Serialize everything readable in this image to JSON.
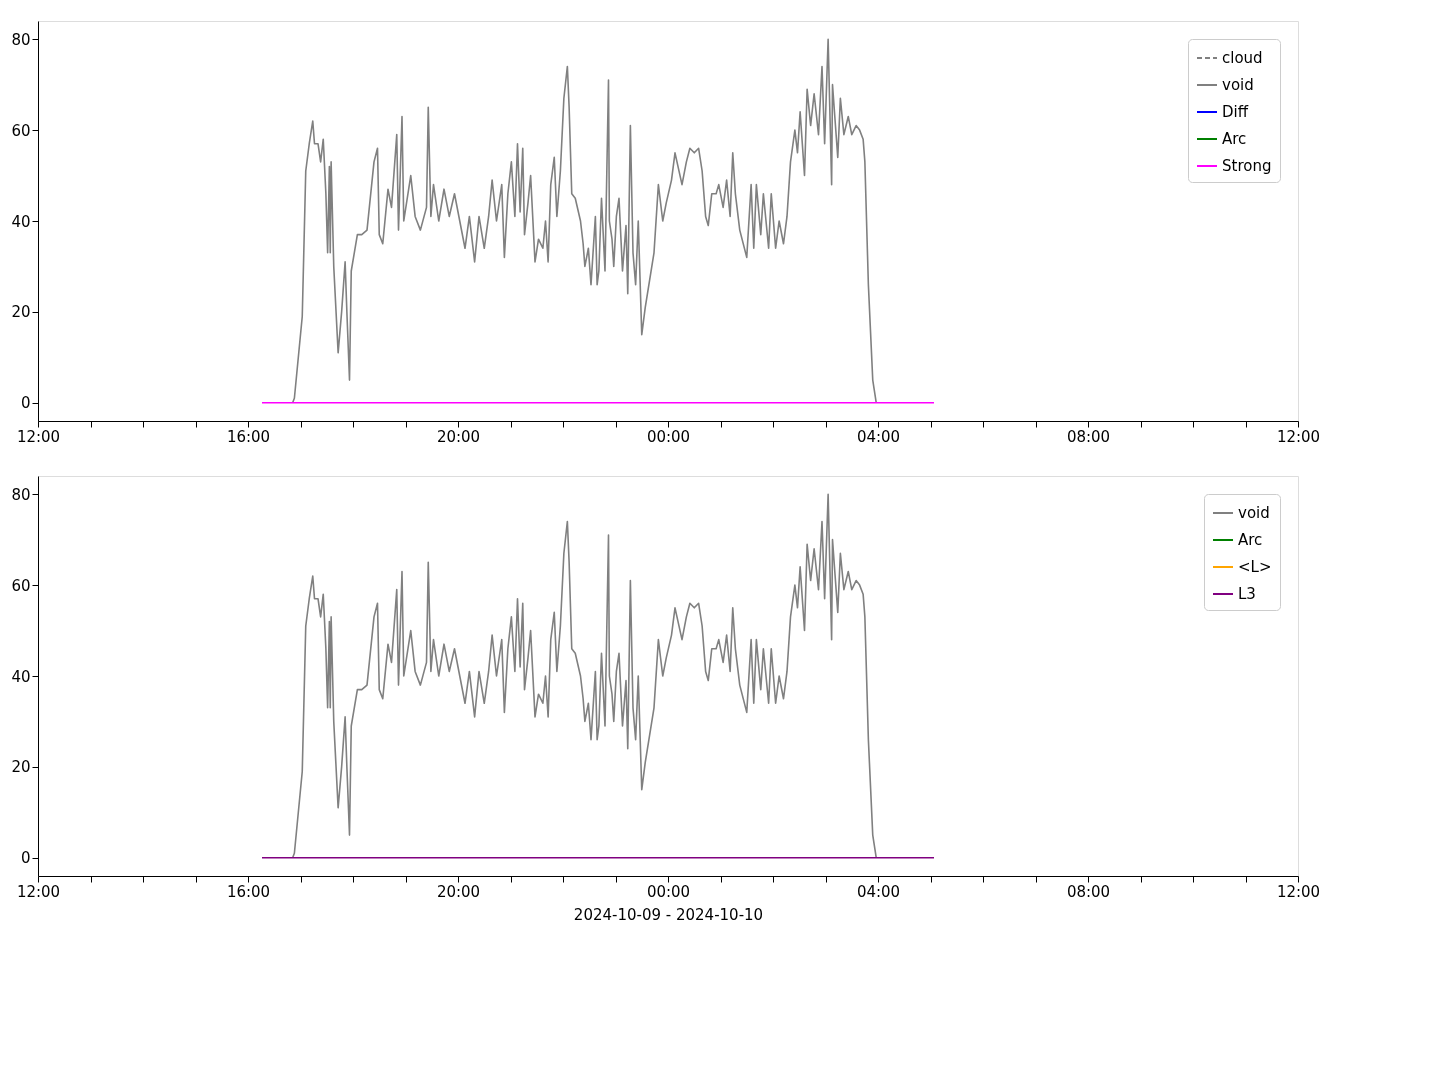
{
  "chart_data": [
    {
      "type": "line",
      "xlim": [
        "2024-10-09T12:00",
        "2024-10-10T12:00"
      ],
      "ylim": [
        -4,
        84
      ],
      "xticks": [
        {
          "value": "2024-10-09T12:00",
          "label": "12:00"
        },
        {
          "value": "2024-10-09T13:00",
          "label": null
        },
        {
          "value": "2024-10-09T14:00",
          "label": null
        },
        {
          "value": "2024-10-09T15:00",
          "label": null
        },
        {
          "value": "2024-10-09T16:00",
          "label": "16:00"
        },
        {
          "value": "2024-10-09T17:00",
          "label": null
        },
        {
          "value": "2024-10-09T18:00",
          "label": null
        },
        {
          "value": "2024-10-09T19:00",
          "label": null
        },
        {
          "value": "2024-10-09T20:00",
          "label": "20:00"
        },
        {
          "value": "2024-10-09T21:00",
          "label": null
        },
        {
          "value": "2024-10-09T22:00",
          "label": null
        },
        {
          "value": "2024-10-09T23:00",
          "label": null
        },
        {
          "value": "2024-10-10T00:00",
          "label": "00:00"
        },
        {
          "value": "2024-10-10T01:00",
          "label": null
        },
        {
          "value": "2024-10-10T02:00",
          "label": null
        },
        {
          "value": "2024-10-10T03:00",
          "label": null
        },
        {
          "value": "2024-10-10T04:00",
          "label": "04:00"
        },
        {
          "value": "2024-10-10T05:00",
          "label": null
        },
        {
          "value": "2024-10-10T06:00",
          "label": null
        },
        {
          "value": "2024-10-10T07:00",
          "label": null
        },
        {
          "value": "2024-10-10T08:00",
          "label": "08:00"
        },
        {
          "value": "2024-10-10T09:00",
          "label": null
        },
        {
          "value": "2024-10-10T10:00",
          "label": null
        },
        {
          "value": "2024-10-10T11:00",
          "label": null
        },
        {
          "value": "2024-10-10T12:00",
          "label": "12:00"
        }
      ],
      "yticks": [
        0,
        20,
        40,
        60,
        80
      ],
      "grid": false,
      "legend": "top right",
      "series": [
        {
          "name": "cloud",
          "color": "#808080",
          "line_style": "dashed"
        },
        {
          "name": "void",
          "color": "#808080",
          "line_style": "solid",
          "x": [
            "2024-10-09T16:51",
            "2024-10-09T16:53",
            "2024-10-09T17:02",
            "2024-10-09T17:06",
            "2024-10-09T17:10",
            "2024-10-09T17:14",
            "2024-10-09T17:16",
            "2024-10-09T17:20",
            "2024-10-09T17:23",
            "2024-10-09T17:26",
            "2024-10-09T17:29",
            "2024-10-09T17:31",
            "2024-10-09T17:33",
            "2024-10-09T17:34",
            "2024-10-09T17:35",
            "2024-10-09T17:38",
            "2024-10-09T17:43",
            "2024-10-09T17:47",
            "2024-10-09T17:51",
            "2024-10-09T17:53",
            "2024-10-09T17:56",
            "2024-10-09T17:58",
            "2024-10-09T18:05",
            "2024-10-09T18:10",
            "2024-10-09T18:16",
            "2024-10-09T18:24",
            "2024-10-09T18:28",
            "2024-10-09T18:30",
            "2024-10-09T18:34",
            "2024-10-09T18:40",
            "2024-10-09T18:44",
            "2024-10-09T18:50",
            "2024-10-09T18:52",
            "2024-10-09T18:56",
            "2024-10-09T18:58",
            "2024-10-09T19:06",
            "2024-10-09T19:11",
            "2024-10-09T19:17",
            "2024-10-09T19:24",
            "2024-10-09T19:26",
            "2024-10-09T19:29",
            "2024-10-09T19:32",
            "2024-10-09T19:38",
            "2024-10-09T19:44",
            "2024-10-09T19:50",
            "2024-10-09T19:56",
            "2024-10-09T20:02",
            "2024-10-09T20:08",
            "2024-10-09T20:13",
            "2024-10-09T20:19",
            "2024-10-09T20:24",
            "2024-10-09T20:30",
            "2024-10-09T20:35",
            "2024-10-09T20:39",
            "2024-10-09T20:44",
            "2024-10-09T20:50",
            "2024-10-09T20:53",
            "2024-10-09T20:57",
            "2024-10-09T21:01",
            "2024-10-09T21:05",
            "2024-10-09T21:08",
            "2024-10-09T21:11",
            "2024-10-09T21:14",
            "2024-10-09T21:16",
            "2024-10-09T21:20",
            "2024-10-09T21:23",
            "2024-10-09T21:28",
            "2024-10-09T21:32",
            "2024-10-09T21:37",
            "2024-10-09T21:40",
            "2024-10-09T21:43",
            "2024-10-09T21:46",
            "2024-10-09T21:50",
            "2024-10-09T21:53",
            "2024-10-09T21:57",
            "2024-10-09T22:01",
            "2024-10-09T22:05",
            "2024-10-09T22:07",
            "2024-10-09T22:10",
            "2024-10-09T22:14",
            "2024-10-09T22:20",
            "2024-10-09T22:23",
            "2024-10-09T22:25",
            "2024-10-09T22:29",
            "2024-10-09T22:32",
            "2024-10-09T22:37",
            "2024-10-09T22:39",
            "2024-10-09T22:41",
            "2024-10-09T22:44",
            "2024-10-09T22:48",
            "2024-10-09T22:52",
            "2024-10-09T22:53",
            "2024-10-09T22:56",
            "2024-10-09T22:58",
            "2024-10-09T23:01",
            "2024-10-09T23:04",
            "2024-10-09T23:08",
            "2024-10-09T23:12",
            "2024-10-09T23:14",
            "2024-10-09T23:17",
            "2024-10-09T23:20",
            "2024-10-09T23:23",
            "2024-10-09T23:26",
            "2024-10-09T23:30",
            "2024-10-09T23:34",
            "2024-10-09T23:39",
            "2024-10-09T23:44",
            "2024-10-09T23:49",
            "2024-10-09T23:54",
            "2024-10-09T23:58",
            "2024-10-10T00:04",
            "2024-10-10T00:08",
            "2024-10-10T00:16",
            "2024-10-10T00:21",
            "2024-10-10T00:25",
            "2024-10-10T00:30",
            "2024-10-10T00:35",
            "2024-10-10T00:39",
            "2024-10-10T00:43",
            "2024-10-10T00:46",
            "2024-10-10T00:50",
            "2024-10-10T00:55",
            "2024-10-10T00:58",
            "2024-10-10T01:03",
            "2024-10-10T01:07",
            "2024-10-10T01:11",
            "2024-10-10T01:14",
            "2024-10-10T01:17",
            "2024-10-10T01:22",
            "2024-10-10T01:30",
            "2024-10-10T01:35",
            "2024-10-10T01:38",
            "2024-10-10T01:41",
            "2024-10-10T01:46",
            "2024-10-10T01:49",
            "2024-10-10T01:55",
            "2024-10-10T01:58",
            "2024-10-10T02:03",
            "2024-10-10T02:07",
            "2024-10-10T02:12",
            "2024-10-10T02:16",
            "2024-10-10T02:20",
            "2024-10-10T02:25",
            "2024-10-10T02:28",
            "2024-10-10T02:31",
            "2024-10-10T02:36",
            "2024-10-10T02:39",
            "2024-10-10T02:43",
            "2024-10-10T02:47",
            "2024-10-10T02:52",
            "2024-10-10T02:56",
            "2024-10-10T02:59",
            "2024-10-10T03:03",
            "2024-10-10T03:07",
            "2024-10-10T03:08",
            "2024-10-10T03:11",
            "2024-10-10T03:14",
            "2024-10-10T03:17",
            "2024-10-10T03:21",
            "2024-10-10T03:26",
            "2024-10-10T03:30",
            "2024-10-10T03:35",
            "2024-10-10T03:39",
            "2024-10-10T03:43",
            "2024-10-10T03:45",
            "2024-10-10T03:49",
            "2024-10-10T03:54",
            "2024-10-10T03:58"
          ],
          "values": [
            0,
            1,
            19,
            51,
            57,
            62,
            57,
            57,
            53,
            58,
            46,
            33,
            52,
            33,
            53,
            30,
            11,
            20,
            31,
            20,
            5,
            29,
            37,
            37,
            38,
            53,
            56,
            37,
            35,
            47,
            43,
            59,
            38,
            63,
            40,
            50,
            41,
            38,
            43,
            65,
            41,
            48,
            40,
            47,
            41,
            46,
            40,
            34,
            41,
            31,
            41,
            34,
            41,
            49,
            40,
            48,
            32,
            46,
            53,
            41,
            57,
            42,
            56,
            37,
            44,
            50,
            31,
            36,
            34,
            40,
            31,
            48,
            54,
            41,
            51,
            67,
            74,
            65,
            46,
            45,
            40,
            35,
            30,
            34,
            26,
            41,
            26,
            29,
            45,
            29,
            71,
            40,
            36,
            30,
            41,
            45,
            29,
            39,
            24,
            61,
            33,
            26,
            40,
            15,
            21,
            27,
            33,
            48,
            40,
            44,
            49,
            55,
            48,
            53,
            56,
            55,
            56,
            51,
            41,
            39,
            46,
            46,
            48,
            43,
            49,
            41,
            55,
            46,
            38,
            32,
            48,
            34,
            48,
            37,
            46,
            34,
            46,
            34,
            40,
            35,
            41,
            53,
            60,
            55,
            64,
            50,
            69,
            61,
            68,
            59,
            74,
            57,
            80,
            48,
            70,
            62,
            54,
            67,
            59,
            63,
            59,
            61,
            60,
            58,
            53,
            26,
            5,
            0
          ]
        },
        {
          "name": "Diff",
          "color": "#0000ff",
          "line_style": "solid"
        },
        {
          "name": "Arc",
          "color": "#008000",
          "line_style": "solid"
        },
        {
          "name": "Strong",
          "color": "#ff00ff",
          "line_style": "solid",
          "x": [
            "2024-10-09T16:16",
            "2024-10-10T05:04"
          ],
          "values": [
            0,
            0
          ]
        }
      ]
    },
    {
      "type": "line",
      "xlim": [
        "2024-10-09T12:00",
        "2024-10-10T12:00"
      ],
      "ylim": [
        -4,
        84
      ],
      "xlabel": "2024-10-09 - 2024-10-10",
      "xticks": [
        {
          "value": "2024-10-09T12:00",
          "label": "12:00"
        },
        {
          "value": "2024-10-09T13:00",
          "label": null
        },
        {
          "value": "2024-10-09T14:00",
          "label": null
        },
        {
          "value": "2024-10-09T15:00",
          "label": null
        },
        {
          "value": "2024-10-09T16:00",
          "label": "16:00"
        },
        {
          "value": "2024-10-09T17:00",
          "label": null
        },
        {
          "value": "2024-10-09T18:00",
          "label": null
        },
        {
          "value": "2024-10-09T19:00",
          "label": null
        },
        {
          "value": "2024-10-09T20:00",
          "label": "20:00"
        },
        {
          "value": "2024-10-09T21:00",
          "label": null
        },
        {
          "value": "2024-10-09T22:00",
          "label": null
        },
        {
          "value": "2024-10-09T23:00",
          "label": null
        },
        {
          "value": "2024-10-10T00:00",
          "label": "00:00"
        },
        {
          "value": "2024-10-10T01:00",
          "label": null
        },
        {
          "value": "2024-10-10T02:00",
          "label": null
        },
        {
          "value": "2024-10-10T03:00",
          "label": null
        },
        {
          "value": "2024-10-10T04:00",
          "label": "04:00"
        },
        {
          "value": "2024-10-10T05:00",
          "label": null
        },
        {
          "value": "2024-10-10T06:00",
          "label": null
        },
        {
          "value": "2024-10-10T07:00",
          "label": null
        },
        {
          "value": "2024-10-10T08:00",
          "label": "08:00"
        },
        {
          "value": "2024-10-10T09:00",
          "label": null
        },
        {
          "value": "2024-10-10T10:00",
          "label": null
        },
        {
          "value": "2024-10-10T11:00",
          "label": null
        },
        {
          "value": "2024-10-10T12:00",
          "label": "12:00"
        }
      ],
      "yticks": [
        0,
        20,
        40,
        60,
        80
      ],
      "grid": false,
      "legend": "top right",
      "series": [
        {
          "name": "void",
          "color": "#808080",
          "line_style": "solid",
          "x": [
            "2024-10-09T16:51",
            "2024-10-09T16:53",
            "2024-10-09T17:02",
            "2024-10-09T17:06",
            "2024-10-09T17:10",
            "2024-10-09T17:14",
            "2024-10-09T17:16",
            "2024-10-09T17:20",
            "2024-10-09T17:23",
            "2024-10-09T17:26",
            "2024-10-09T17:29",
            "2024-10-09T17:31",
            "2024-10-09T17:33",
            "2024-10-09T17:34",
            "2024-10-09T17:35",
            "2024-10-09T17:38",
            "2024-10-09T17:43",
            "2024-10-09T17:47",
            "2024-10-09T17:51",
            "2024-10-09T17:53",
            "2024-10-09T17:56",
            "2024-10-09T17:58",
            "2024-10-09T18:05",
            "2024-10-09T18:10",
            "2024-10-09T18:16",
            "2024-10-09T18:24",
            "2024-10-09T18:28",
            "2024-10-09T18:30",
            "2024-10-09T18:34",
            "2024-10-09T18:40",
            "2024-10-09T18:44",
            "2024-10-09T18:50",
            "2024-10-09T18:52",
            "2024-10-09T18:56",
            "2024-10-09T18:58",
            "2024-10-09T19:06",
            "2024-10-09T19:11",
            "2024-10-09T19:17",
            "2024-10-09T19:24",
            "2024-10-09T19:26",
            "2024-10-09T19:29",
            "2024-10-09T19:32",
            "2024-10-09T19:38",
            "2024-10-09T19:44",
            "2024-10-09T19:50",
            "2024-10-09T19:56",
            "2024-10-09T20:02",
            "2024-10-09T20:08",
            "2024-10-09T20:13",
            "2024-10-09T20:19",
            "2024-10-09T20:24",
            "2024-10-09T20:30",
            "2024-10-09T20:35",
            "2024-10-09T20:39",
            "2024-10-09T20:44",
            "2024-10-09T20:50",
            "2024-10-09T20:53",
            "2024-10-09T20:57",
            "2024-10-09T21:01",
            "2024-10-09T21:05",
            "2024-10-09T21:08",
            "2024-10-09T21:11",
            "2024-10-09T21:14",
            "2024-10-09T21:16",
            "2024-10-09T21:20",
            "2024-10-09T21:23",
            "2024-10-09T21:28",
            "2024-10-09T21:32",
            "2024-10-09T21:37",
            "2024-10-09T21:40",
            "2024-10-09T21:43",
            "2024-10-09T21:46",
            "2024-10-09T21:50",
            "2024-10-09T21:53",
            "2024-10-09T21:57",
            "2024-10-09T22:01",
            "2024-10-09T22:05",
            "2024-10-09T22:07",
            "2024-10-09T22:10",
            "2024-10-09T22:14",
            "2024-10-09T22:20",
            "2024-10-09T22:23",
            "2024-10-09T22:25",
            "2024-10-09T22:29",
            "2024-10-09T22:32",
            "2024-10-09T22:37",
            "2024-10-09T22:39",
            "2024-10-09T22:41",
            "2024-10-09T22:44",
            "2024-10-09T22:48",
            "2024-10-09T22:52",
            "2024-10-09T22:53",
            "2024-10-09T22:56",
            "2024-10-09T22:58",
            "2024-10-09T23:01",
            "2024-10-09T23:04",
            "2024-10-09T23:08",
            "2024-10-09T23:12",
            "2024-10-09T23:14",
            "2024-10-09T23:17",
            "2024-10-09T23:20",
            "2024-10-09T23:23",
            "2024-10-09T23:26",
            "2024-10-09T23:30",
            "2024-10-09T23:34",
            "2024-10-09T23:39",
            "2024-10-09T23:44",
            "2024-10-09T23:49",
            "2024-10-09T23:54",
            "2024-10-09T23:58",
            "2024-10-10T00:04",
            "2024-10-10T00:08",
            "2024-10-10T00:16",
            "2024-10-10T00:21",
            "2024-10-10T00:25",
            "2024-10-10T00:30",
            "2024-10-10T00:35",
            "2024-10-10T00:39",
            "2024-10-10T00:43",
            "2024-10-10T00:46",
            "2024-10-10T00:50",
            "2024-10-10T00:55",
            "2024-10-10T00:58",
            "2024-10-10T01:03",
            "2024-10-10T01:07",
            "2024-10-10T01:11",
            "2024-10-10T01:14",
            "2024-10-10T01:17",
            "2024-10-10T01:22",
            "2024-10-10T01:30",
            "2024-10-10T01:35",
            "2024-10-10T01:38",
            "2024-10-10T01:41",
            "2024-10-10T01:46",
            "2024-10-10T01:49",
            "2024-10-10T01:55",
            "2024-10-10T01:58",
            "2024-10-10T02:03",
            "2024-10-10T02:07",
            "2024-10-10T02:12",
            "2024-10-10T02:16",
            "2024-10-10T02:20",
            "2024-10-10T02:25",
            "2024-10-10T02:28",
            "2024-10-10T02:31",
            "2024-10-10T02:36",
            "2024-10-10T02:39",
            "2024-10-10T02:43",
            "2024-10-10T02:47",
            "2024-10-10T02:52",
            "2024-10-10T02:56",
            "2024-10-10T02:59",
            "2024-10-10T03:03",
            "2024-10-10T03:07",
            "2024-10-10T03:08",
            "2024-10-10T03:11",
            "2024-10-10T03:14",
            "2024-10-10T03:17",
            "2024-10-10T03:21",
            "2024-10-10T03:26",
            "2024-10-10T03:30",
            "2024-10-10T03:35",
            "2024-10-10T03:39",
            "2024-10-10T03:43",
            "2024-10-10T03:45",
            "2024-10-10T03:49",
            "2024-10-10T03:54",
            "2024-10-10T03:58"
          ],
          "values": [
            0,
            1,
            19,
            51,
            57,
            62,
            57,
            57,
            53,
            58,
            46,
            33,
            52,
            33,
            53,
            30,
            11,
            20,
            31,
            20,
            5,
            29,
            37,
            37,
            38,
            53,
            56,
            37,
            35,
            47,
            43,
            59,
            38,
            63,
            40,
            50,
            41,
            38,
            43,
            65,
            41,
            48,
            40,
            47,
            41,
            46,
            40,
            34,
            41,
            31,
            41,
            34,
            41,
            49,
            40,
            48,
            32,
            46,
            53,
            41,
            57,
            42,
            56,
            37,
            44,
            50,
            31,
            36,
            34,
            40,
            31,
            48,
            54,
            41,
            51,
            67,
            74,
            65,
            46,
            45,
            40,
            35,
            30,
            34,
            26,
            41,
            26,
            29,
            45,
            29,
            71,
            40,
            36,
            30,
            41,
            45,
            29,
            39,
            24,
            61,
            33,
            26,
            40,
            15,
            21,
            27,
            33,
            48,
            40,
            44,
            49,
            55,
            48,
            53,
            56,
            55,
            56,
            51,
            41,
            39,
            46,
            46,
            48,
            43,
            49,
            41,
            55,
            46,
            38,
            32,
            48,
            34,
            48,
            37,
            46,
            34,
            46,
            34,
            40,
            35,
            41,
            53,
            60,
            55,
            64,
            50,
            69,
            61,
            68,
            59,
            74,
            57,
            80,
            48,
            70,
            62,
            54,
            67,
            59,
            63,
            59,
            61,
            60,
            58,
            53,
            26,
            5,
            0
          ]
        },
        {
          "name": "Arc",
          "color": "#008000",
          "line_style": "solid"
        },
        {
          "name": "<L>",
          "color": "#ffa500",
          "line_style": "solid"
        },
        {
          "name": "L3",
          "color": "#800080",
          "line_style": "solid",
          "x": [
            "2024-10-09T16:16",
            "2024-10-10T05:04"
          ],
          "values": [
            0,
            0
          ]
        }
      ]
    }
  ]
}
